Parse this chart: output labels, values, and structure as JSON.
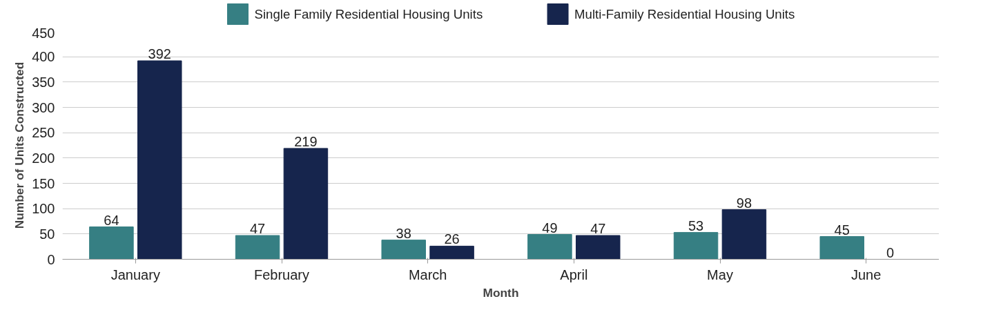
{
  "chart_data": {
    "type": "bar",
    "xlabel": "Month",
    "ylabel": "Number of Units Constructed",
    "categories": [
      "January",
      "February",
      "March",
      "April",
      "May",
      "June"
    ],
    "series": [
      {
        "name": "Single Family Residential Housing Units",
        "color": "#367f83",
        "values": [
          64,
          47,
          38,
          49,
          53,
          45
        ]
      },
      {
        "name": "Multi-Family Residential Housing Units",
        "color": "#16254d",
        "values": [
          392,
          219,
          26,
          47,
          98,
          0
        ]
      }
    ],
    "ylim": [
      0,
      450
    ],
    "yticks": [
      0,
      50,
      100,
      150,
      200,
      250,
      300,
      350,
      400,
      450
    ],
    "grid": "y",
    "legend": "top",
    "data_labels": true
  }
}
